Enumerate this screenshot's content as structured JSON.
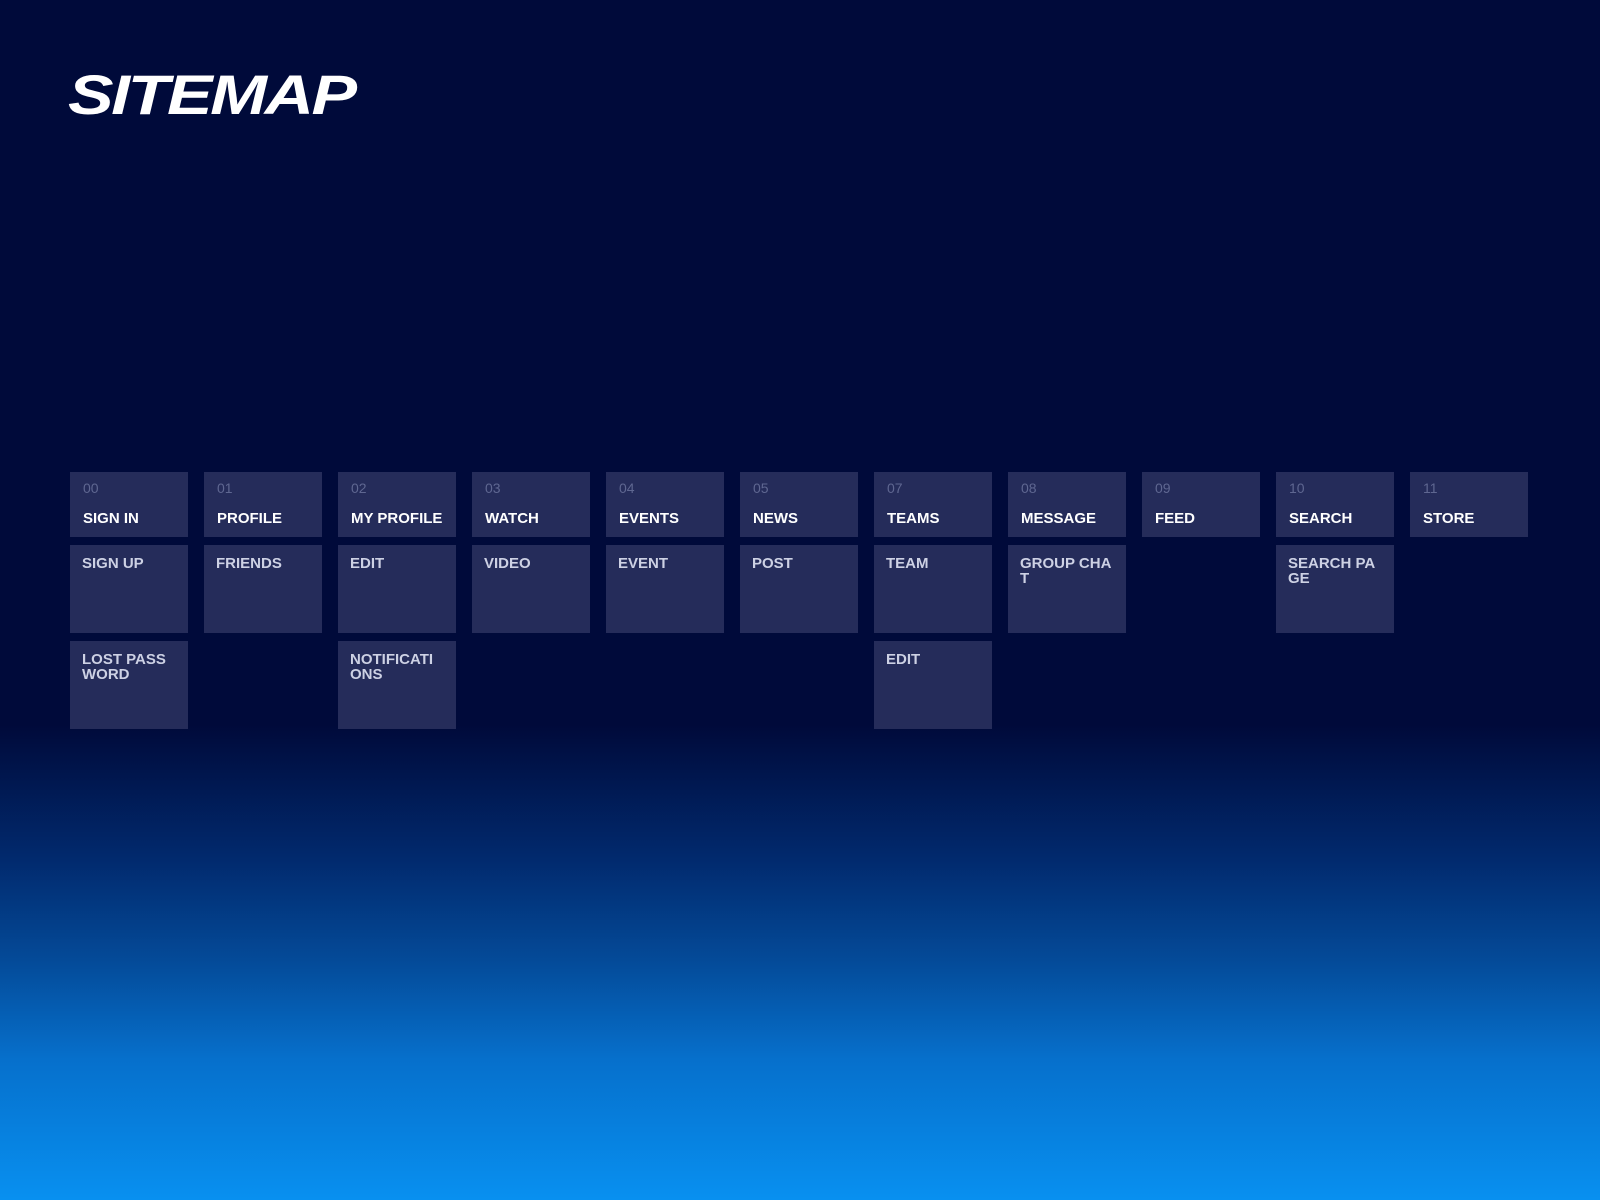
{
  "title": "SITEMAP",
  "columns": [
    {
      "num": "00",
      "label": "SIGN IN",
      "children": [
        "SIGN UP",
        "LOST PASSWORD"
      ]
    },
    {
      "num": "01",
      "label": "PROFILE",
      "children": [
        "FRIENDS"
      ]
    },
    {
      "num": "02",
      "label": "MY PROFILE",
      "children": [
        "EDIT",
        "NOTIFICATIONS"
      ]
    },
    {
      "num": "03",
      "label": "WATCH",
      "children": [
        "VIDEO"
      ]
    },
    {
      "num": "04",
      "label": "EVENTS",
      "children": [
        "EVENT"
      ]
    },
    {
      "num": "05",
      "label": "NEWS",
      "children": [
        "POST"
      ]
    },
    {
      "num": "07",
      "label": "TEAMS",
      "children": [
        "TEAM",
        "EDIT"
      ]
    },
    {
      "num": "08",
      "label": "MESSAGE",
      "children": [
        "GROUP CHAT"
      ]
    },
    {
      "num": "09",
      "label": "FEED",
      "children": []
    },
    {
      "num": "10",
      "label": "SEARCH",
      "children": [
        "SEARCH PAGE"
      ]
    },
    {
      "num": "11",
      "label": "STORE",
      "children": []
    }
  ],
  "colors": {
    "background_top": "#000a3a",
    "background_bottom": "#0890f0",
    "box": "#252c5a"
  }
}
